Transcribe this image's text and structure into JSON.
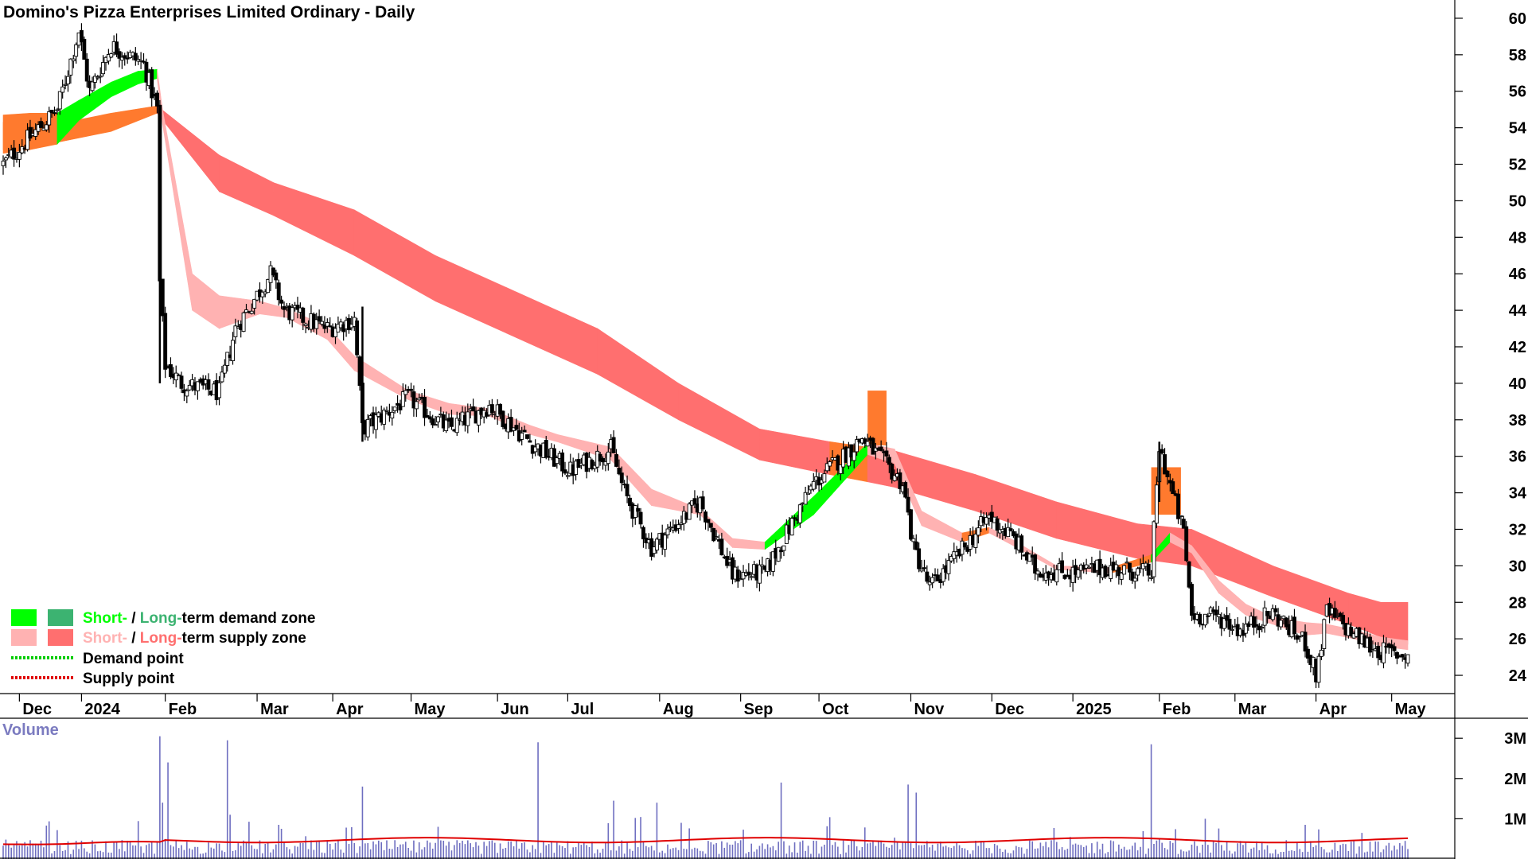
{
  "chart_data": {
    "type": "candlestick",
    "title": "Domino's Pizza Enterprises Limited Ordinary - Daily",
    "price_axis": {
      "ylim": [
        23,
        61
      ],
      "ticks": [
        "24",
        "26",
        "28",
        "30",
        "32",
        "34",
        "36",
        "38",
        "40",
        "42",
        "44",
        "46",
        "48",
        "50",
        "52",
        "54",
        "56",
        "58",
        "60"
      ]
    },
    "x_axis": {
      "xlim": [
        0,
        525
      ],
      "labels": [
        {
          "text": "Dec",
          "x": 6
        },
        {
          "text": "2024",
          "x": 29
        },
        {
          "text": "Feb",
          "x": 60
        },
        {
          "text": "Mar",
          "x": 94
        },
        {
          "text": "Apr",
          "x": 122
        },
        {
          "text": "May",
          "x": 151
        },
        {
          "text": "Jun",
          "x": 183
        },
        {
          "text": "Jul",
          "x": 209
        },
        {
          "text": "Aug",
          "x": 243
        },
        {
          "text": "Sep",
          "x": 273
        },
        {
          "text": "Oct",
          "x": 302
        },
        {
          "text": "Nov",
          "x": 336
        },
        {
          "text": "Dec",
          "x": 366
        },
        {
          "text": "2025",
          "x": 396
        },
        {
          "text": "Feb",
          "x": 428
        },
        {
          "text": "Mar",
          "x": 456
        },
        {
          "text": "Apr",
          "x": 486
        },
        {
          "text": "May",
          "x": 514
        }
      ]
    },
    "volume_axis": {
      "title": "Volume",
      "ylim": [
        0,
        3.3
      ],
      "ticks": [
        {
          "value": 1,
          "label": "1M"
        },
        {
          "value": 2,
          "label": "2M"
        },
        {
          "value": 3,
          "label": "3M"
        }
      ],
      "ma_level": 0.42
    },
    "anchors": [
      [
        0,
        52
      ],
      [
        20,
        55
      ],
      [
        28,
        59.3
      ],
      [
        32,
        56
      ],
      [
        40,
        58.5
      ],
      [
        52,
        57.5
      ],
      [
        57,
        55
      ],
      [
        58,
        45.5
      ],
      [
        60,
        41
      ],
      [
        66,
        40
      ],
      [
        80,
        39.5
      ],
      [
        86,
        43
      ],
      [
        99,
        46
      ],
      [
        104,
        44
      ],
      [
        120,
        43
      ],
      [
        130,
        43.5
      ],
      [
        133,
        37.5
      ],
      [
        150,
        39.2
      ],
      [
        165,
        37.5
      ],
      [
        180,
        38.8
      ],
      [
        195,
        36.8
      ],
      [
        210,
        35.2
      ],
      [
        225,
        36.4
      ],
      [
        230,
        34
      ],
      [
        240,
        31
      ],
      [
        258,
        33.5
      ],
      [
        270,
        29.5
      ],
      [
        282,
        29.6
      ],
      [
        300,
        34.5
      ],
      [
        318,
        37
      ],
      [
        333,
        34.5
      ],
      [
        337,
        31
      ],
      [
        343,
        28.8
      ],
      [
        353,
        30.5
      ],
      [
        365,
        32.7
      ],
      [
        374,
        31.5
      ],
      [
        382,
        29.8
      ],
      [
        398,
        29.6
      ],
      [
        407,
        29.9
      ],
      [
        425,
        29.6
      ],
      [
        428,
        36.5
      ],
      [
        437,
        31.8
      ],
      [
        440,
        27.3
      ],
      [
        450,
        27.2
      ],
      [
        458,
        26.5
      ],
      [
        470,
        27.4
      ],
      [
        482,
        25.8
      ],
      [
        486,
        24
      ],
      [
        490,
        27.5
      ],
      [
        502,
        26
      ],
      [
        510,
        25.3
      ],
      [
        520,
        25.1
      ]
    ],
    "gaps": [
      [
        57,
        -9.8
      ],
      [
        132,
        -6
      ]
    ],
    "long_term_band": {
      "points": [
        [
          0,
          54.3,
          52.8
        ],
        [
          20,
          54.2,
          53.2
        ],
        [
          40,
          54.8,
          53.8
        ],
        [
          57,
          55.2,
          54.8
        ],
        [
          80,
          52.5,
          50.5
        ],
        [
          100,
          51,
          49.2
        ],
        [
          130,
          49.5,
          47
        ],
        [
          160,
          47,
          44.5
        ],
        [
          190,
          45,
          42.5
        ],
        [
          220,
          43,
          40.5
        ],
        [
          250,
          40,
          38
        ],
        [
          280,
          37.5,
          35.8
        ],
        [
          306,
          36.8,
          35
        ],
        [
          320,
          36.5,
          34.6
        ],
        [
          330,
          36.3,
          34.3
        ],
        [
          360,
          35,
          33
        ],
        [
          390,
          33.5,
          31.5
        ],
        [
          420,
          32.3,
          30.4
        ],
        [
          440,
          32,
          30
        ],
        [
          470,
          30,
          28.3
        ],
        [
          498,
          28.5,
          26.8
        ],
        [
          510,
          28,
          26.1
        ],
        [
          520,
          28,
          25.7
        ]
      ],
      "supply_until": 303,
      "demand_from": 500,
      "colors": {
        "demand": "#00ff00",
        "supply": "#ff6f6f",
        "transition": "#ff7a2e"
      }
    },
    "short_term_band": {
      "points": [
        [
          0,
          54.7,
          52.6
        ],
        [
          10,
          54.8,
          52.8
        ],
        [
          20,
          54.8,
          53.1
        ],
        [
          28,
          55.5,
          54.4
        ],
        [
          40,
          56.5,
          55.7
        ],
        [
          50,
          57.1,
          56.4
        ],
        [
          57,
          57.2,
          56.7
        ],
        [
          59,
          55,
          54.2
        ],
        [
          70,
          46,
          44
        ],
        [
          80,
          44.8,
          43
        ],
        [
          95,
          44.5,
          43.8
        ],
        [
          105,
          44.1,
          43.6
        ],
        [
          120,
          43.1,
          42.4
        ],
        [
          130,
          41.5,
          40.7
        ],
        [
          150,
          39.6,
          39.1
        ],
        [
          165,
          38.9,
          38.3
        ],
        [
          180,
          38.6,
          38.2
        ],
        [
          195,
          37.7,
          37.2
        ],
        [
          205,
          37.2,
          36.8
        ],
        [
          225,
          36.5,
          35.8
        ],
        [
          240,
          34.2,
          33.3
        ],
        [
          258,
          33.1,
          32.8
        ],
        [
          270,
          31.5,
          31
        ],
        [
          282,
          31.3,
          30.9
        ],
        [
          300,
          33.8,
          32.8
        ],
        [
          320,
          36.7,
          36.1
        ],
        [
          330,
          36.4,
          35.6
        ],
        [
          340,
          33,
          32.2
        ],
        [
          355,
          31.8,
          31.3
        ],
        [
          365,
          32.1,
          31.8
        ],
        [
          374,
          31.4,
          31.1
        ],
        [
          390,
          30,
          29.8
        ],
        [
          410,
          29.9,
          29.6
        ],
        [
          425,
          30.6,
          30.2
        ],
        [
          432,
          31.8,
          31.3
        ],
        [
          440,
          31.1,
          30.7
        ],
        [
          450,
          29.2,
          28.5
        ],
        [
          460,
          27.9,
          27.3
        ],
        [
          470,
          27.2,
          26.8
        ],
        [
          482,
          26.9,
          26.2
        ],
        [
          490,
          26.8,
          26.3
        ],
        [
          500,
          26.5,
          26
        ],
        [
          510,
          26.1,
          25.6
        ],
        [
          520,
          25.9,
          25.4
        ]
      ],
      "colors": {
        "demand": "#00ff00",
        "supply": "#ffb2b2",
        "transition": "#ff7a2e"
      }
    },
    "legend": [
      {
        "swatches": [
          "#00ff00",
          "#3cb371"
        ],
        "parts": [
          {
            "text": "Short-",
            "color": "#00ff00"
          },
          {
            "text": " / ",
            "color": "#000000"
          },
          {
            "text": "Long-",
            "color": "#3cb371"
          },
          {
            "text": "term demand zone",
            "color": "#000000"
          }
        ]
      },
      {
        "swatches": [
          "#ffb2b2",
          "#ff6f6f"
        ],
        "parts": [
          {
            "text": "Short-",
            "color": "#ffb2b2"
          },
          {
            "text": " / ",
            "color": "#000000"
          },
          {
            "text": "Long-",
            "color": "#ff6f6f"
          },
          {
            "text": "term supply zone",
            "color": "#000000"
          }
        ]
      },
      {
        "line": "#00cc00",
        "parts": [
          {
            "text": "Demand point",
            "color": "#000000"
          }
        ]
      },
      {
        "line": "#e00000",
        "parts": [
          {
            "text": "Supply point",
            "color": "#000000"
          }
        ]
      }
    ],
    "colors": {
      "volume_bar": "#6e6ec0",
      "volume_ma": "#e00000",
      "candle": "#000000",
      "axis": "#000000"
    }
  }
}
